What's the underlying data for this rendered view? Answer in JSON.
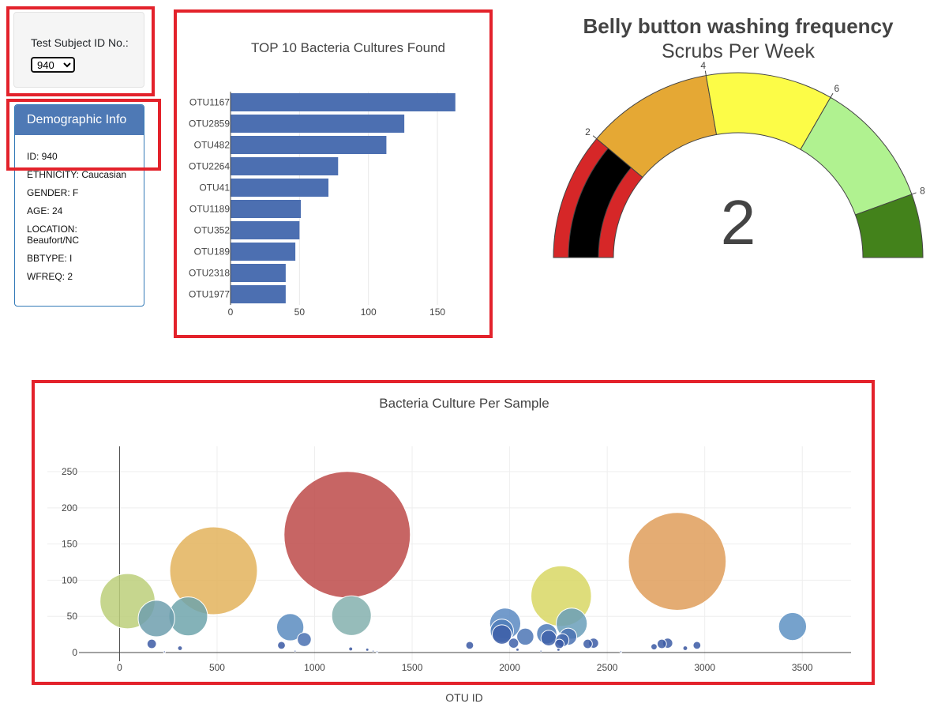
{
  "selector": {
    "label": "Test Subject ID No.:",
    "value": "940"
  },
  "demographic": {
    "title": "Demographic Info",
    "rows": [
      "ID: 940",
      "ETHNICITY: Caucasian",
      "GENDER: F",
      "AGE: 24",
      "LOCATION: Beaufort/NC",
      "BBTYPE: I",
      "WFREQ: 2"
    ]
  },
  "colors": {
    "accent": "#e3222b",
    "bar": "#4c6fb1",
    "panel_header": "#4e79b5"
  },
  "chart_data": [
    {
      "type": "bar",
      "orientation": "horizontal",
      "title": "TOP 10 Bacteria Cultures Found",
      "categories": [
        "OTU1167",
        "OTU2859",
        "OTU482",
        "OTU2264",
        "OTU41",
        "OTU1189",
        "OTU352",
        "OTU189",
        "OTU2318",
        "OTU1977"
      ],
      "values": [
        163,
        126,
        113,
        78,
        71,
        51,
        50,
        47,
        40,
        40
      ],
      "xlim": [
        0,
        170
      ],
      "xticks": [
        0,
        50,
        100,
        150
      ],
      "grid": true
    },
    {
      "type": "gauge",
      "title": "Belly button washing frequency",
      "subtitle": "Scrubs Per Week",
      "value": 2,
      "range": [
        0,
        9
      ],
      "tick_labels": [
        2,
        4,
        6,
        8
      ],
      "steps": [
        {
          "from": 0,
          "to": 2,
          "color": "#d62728"
        },
        {
          "from": 2,
          "to": 4,
          "color": "#e5a834"
        },
        {
          "from": 4,
          "to": 6,
          "color": "#fcfc47"
        },
        {
          "from": 6,
          "to": 8,
          "color": "#b0f290"
        },
        {
          "from": 8,
          "to": 9,
          "color": "#43821b"
        }
      ],
      "bar_color": "#000000"
    },
    {
      "type": "scatter",
      "title": "Bacteria Culture Per Sample",
      "xlabel": "OTU ID",
      "xlim": [
        -370,
        3750
      ],
      "ylim": [
        -12,
        285
      ],
      "xticks": [
        0,
        500,
        1000,
        1500,
        2000,
        2500,
        3000,
        3500
      ],
      "yticks": [
        0,
        50,
        100,
        150,
        200,
        250
      ],
      "grid": true,
      "points": [
        {
          "x": 41,
          "y": 71,
          "color": "#bccf7a"
        },
        {
          "x": 482,
          "y": 113,
          "color": "#e3b35c"
        },
        {
          "x": 1167,
          "y": 163,
          "color": "#bd4a49"
        },
        {
          "x": 2859,
          "y": 126,
          "color": "#df9e5b"
        },
        {
          "x": 2264,
          "y": 78,
          "color": "#d8d764"
        },
        {
          "x": 189,
          "y": 47,
          "color": "#6f9fae"
        },
        {
          "x": 352,
          "y": 50,
          "color": "#6ea5ac"
        },
        {
          "x": 1189,
          "y": 51,
          "color": "#84b0ae"
        },
        {
          "x": 2318,
          "y": 40,
          "color": "#6a9fba"
        },
        {
          "x": 1977,
          "y": 40,
          "color": "#5a8ac2"
        },
        {
          "x": 875,
          "y": 35,
          "color": "#5b8cc0"
        },
        {
          "x": 3450,
          "y": 36,
          "color": "#5e92c3"
        },
        {
          "x": 1960,
          "y": 30,
          "color": "#4f7cba"
        },
        {
          "x": 2190,
          "y": 26,
          "color": "#4e7bb9"
        },
        {
          "x": 2080,
          "y": 22,
          "color": "#4c76b5"
        },
        {
          "x": 1960,
          "y": 25,
          "color": "#3e5fa8"
        },
        {
          "x": 2300,
          "y": 22,
          "color": "#4a72b3"
        },
        {
          "x": 947,
          "y": 18,
          "color": "#4a71b2"
        },
        {
          "x": 2200,
          "y": 20,
          "color": "#3e60a9"
        },
        {
          "x": 2270,
          "y": 17,
          "color": "#4469ae"
        },
        {
          "x": 2020,
          "y": 13,
          "color": "#3f62aa"
        },
        {
          "x": 2255,
          "y": 12,
          "color": "#3a59a4"
        },
        {
          "x": 2400,
          "y": 12,
          "color": "#3d5ea7"
        },
        {
          "x": 2430,
          "y": 13,
          "color": "#3c5ca6"
        },
        {
          "x": 2810,
          "y": 13,
          "color": "#3d5da6"
        },
        {
          "x": 2780,
          "y": 12,
          "color": "#3b5aa5"
        },
        {
          "x": 2960,
          "y": 10,
          "color": "#3a59a4"
        },
        {
          "x": 165,
          "y": 12,
          "color": "#3c5ba5"
        },
        {
          "x": 1795,
          "y": 10,
          "color": "#3a58a3"
        },
        {
          "x": 830,
          "y": 10,
          "color": "#3a58a3"
        },
        {
          "x": 2740,
          "y": 8,
          "color": "#3a58a3"
        },
        {
          "x": 310,
          "y": 6,
          "color": "#39569f"
        },
        {
          "x": 2900,
          "y": 6,
          "color": "#39569f"
        },
        {
          "x": 1185,
          "y": 5,
          "color": "#39569f"
        },
        {
          "x": 1270,
          "y": 4,
          "color": "#39569f"
        },
        {
          "x": 2040,
          "y": 4,
          "color": "#39569f"
        },
        {
          "x": 2250,
          "y": 4,
          "color": "#39569f"
        },
        {
          "x": 2160,
          "y": 2,
          "color": "#3a579f"
        },
        {
          "x": 1300,
          "y": 2,
          "color": "#3a579f"
        },
        {
          "x": 900,
          "y": 2,
          "color": "#3a579f"
        },
        {
          "x": 230,
          "y": 1,
          "color": "#3a579f"
        },
        {
          "x": 1320,
          "y": 1,
          "color": "#3a579f"
        },
        {
          "x": 2570,
          "y": 1,
          "color": "#3a579f"
        }
      ]
    }
  ]
}
